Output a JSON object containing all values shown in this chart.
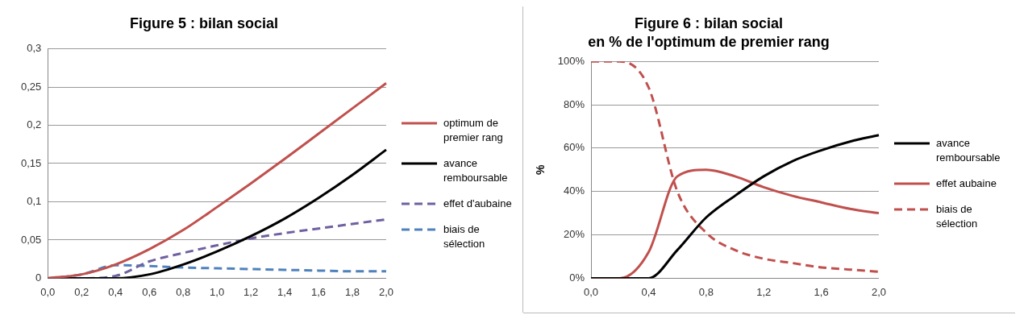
{
  "chart_data": [
    {
      "type": "line",
      "title": "Figure 5 : bilan social",
      "categories": [
        "0,0",
        "0,2",
        "0,4",
        "0,6",
        "0,8",
        "1,0",
        "1,2",
        "1,4",
        "1,6",
        "1,8",
        "2,0"
      ],
      "ylim": [
        0,
        0.3
      ],
      "yticks": [
        0,
        {
          "value": 0.05,
          "label": "0,05"
        },
        {
          "value": 0.1,
          "label": "0,1"
        },
        {
          "value": 0.15,
          "label": "0,15"
        },
        {
          "value": 0.2,
          "label": "0,2"
        },
        {
          "value": 0.25,
          "label": "0,25"
        },
        {
          "value": 0.3,
          "label": "0,3"
        }
      ],
      "grid": "y",
      "legend": "right",
      "marker": "none",
      "series": [
        {
          "name": "optimum de premier rang",
          "color": "#c0504d",
          "line_style": "solid",
          "values": [
            0,
            0.005,
            0.018,
            0.038,
            0.063,
            0.093,
            0.124,
            0.156,
            0.189,
            0.222,
            0.255
          ]
        },
        {
          "name": "avance remboursable",
          "color": "#000000",
          "line_style": "solid",
          "values": [
            0,
            0,
            0,
            0.005,
            0.018,
            0.035,
            0.055,
            0.078,
            0.105,
            0.135,
            0.168
          ]
        },
        {
          "name": "effet d'aubaine",
          "color": "#7060a0",
          "line_style": "dashed",
          "values": [
            0,
            0,
            0.003,
            0.022,
            0.033,
            0.043,
            0.052,
            0.059,
            0.065,
            0.071,
            0.077
          ]
        },
        {
          "name": "biais de sélection",
          "color": "#4f81bd",
          "line_style": "dashed",
          "values": [
            0,
            0.005,
            0.017,
            0.016,
            0.014,
            0.013,
            0.012,
            0.011,
            0.01,
            0.009,
            0.009
          ]
        }
      ]
    },
    {
      "type": "line",
      "title": "Figure 6 : bilan social",
      "subtitle": "en % de l'optimum de premier rang",
      "ylabel": "%",
      "categories": [
        "0,0",
        null,
        "0,4",
        null,
        "0,8",
        null,
        "1,2",
        null,
        "1,6",
        null,
        "2,0"
      ],
      "ylim": [
        0,
        100
      ],
      "yticks": [
        {
          "value": 0,
          "label": "0%"
        },
        {
          "value": 20,
          "label": "20%"
        },
        {
          "value": 40,
          "label": "40%"
        },
        {
          "value": 60,
          "label": "60%"
        },
        {
          "value": 80,
          "label": "80%"
        },
        {
          "value": 100,
          "label": "100%"
        }
      ],
      "grid": "y",
      "legend": "right",
      "marker": "none",
      "series": [
        {
          "name": "avance remboursable",
          "color": "#000000",
          "line_style": "solid",
          "values": [
            0,
            0,
            0,
            13,
            28,
            38,
            47,
            54,
            59,
            63,
            66
          ]
        },
        {
          "name": "effet aubaine",
          "color": "#c0504d",
          "line_style": "solid",
          "values": [
            0,
            0,
            12,
            47,
            50,
            47,
            42,
            38,
            35,
            32,
            30
          ]
        },
        {
          "name": "biais de sélection",
          "color": "#c0504d",
          "line_style": "dashed",
          "values": [
            100,
            100,
            88,
            40,
            21,
            13,
            9,
            7,
            5,
            4,
            3
          ]
        }
      ]
    }
  ]
}
